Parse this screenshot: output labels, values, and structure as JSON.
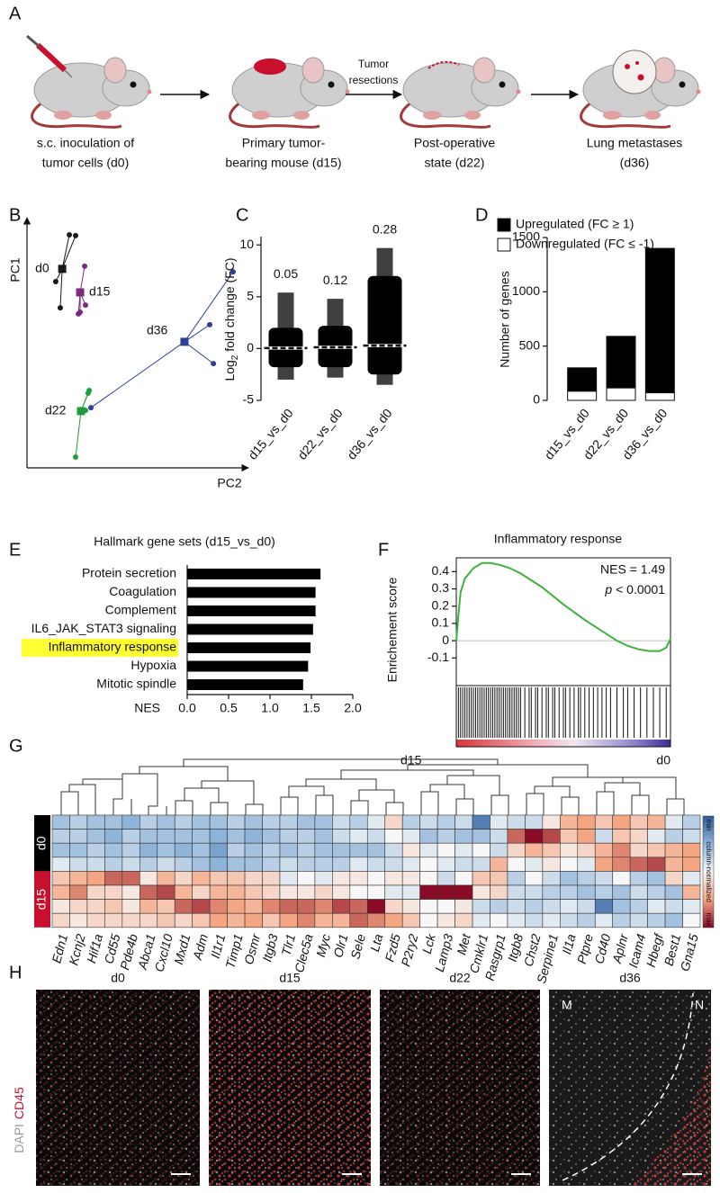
{
  "panel_labels": [
    "A",
    "B",
    "C",
    "D",
    "E",
    "F",
    "G",
    "H"
  ],
  "schematic": {
    "steps": [
      {
        "caption": [
          "s.c. inoculation of",
          "tumor cells (d0)"
        ]
      },
      {
        "caption": [
          "Primary tumor-",
          "bearing mouse (d15)"
        ]
      },
      {
        "caption": [
          "Post-operative",
          "state (d22)"
        ]
      },
      {
        "caption": [
          "Lung metastases",
          "(d36)"
        ]
      }
    ],
    "transition_label": [
      "Tumor",
      "resections"
    ]
  },
  "chart_data": [
    {
      "type": "pca",
      "x_label": "PC2",
      "y_label": "PC1",
      "xlim": [
        0,
        100
      ],
      "ylim": [
        0,
        100
      ],
      "series": [
        {
          "name": "d0",
          "color": "#1a1a1a",
          "centroid": [
            16.3,
            81.3
          ],
          "x": [
            19.6,
            22.5,
            13.3,
            15.4
          ],
          "y": [
            95.2,
            94.9,
            76.1,
            65.4
          ]
        },
        {
          "name": "d15",
          "color": "#7b2a7e",
          "centroid": [
            24.6,
            71.7
          ],
          "x": [
            26.7,
            27.1,
            24.6,
            23.8
          ],
          "y": [
            82.4,
            66.5,
            63.6,
            62.9
          ]
        },
        {
          "name": "d36",
          "color": "#2f3f99",
          "centroid": [
            72.9,
            51.5
          ],
          "x": [
            95.4,
            84.6,
            86.3,
            29.6
          ],
          "y": [
            80.1,
            58.5,
            42.6,
            24.6
          ]
        },
        {
          "name": "d22",
          "color": "#1e9e3a",
          "centroid": [
            25.0,
            23.2
          ],
          "x": [
            28.3,
            22.5,
            28.8,
            27.1
          ],
          "y": [
            30.5,
            4.4,
            31.6,
            23.5
          ]
        }
      ]
    },
    {
      "type": "strip",
      "y_label_parts": [
        "Log",
        "2",
        " fold change (FC)"
      ],
      "categories": [
        "d15_vs_d0",
        "d22_vs_d0",
        "d36_vs_d0"
      ],
      "values": [
        0.05,
        0.12,
        0.28
      ],
      "min": [
        -3,
        -2.8,
        -3.5
      ],
      "max": [
        5.4,
        4.8,
        9.7
      ],
      "dense_low": [
        -1.8,
        -1.8,
        -2.5
      ],
      "dense_high": [
        2,
        2.2,
        7
      ],
      "color": "#000000",
      "ylim": [
        -5,
        10.8
      ],
      "yticks": [
        10,
        5,
        0,
        -5
      ]
    },
    {
      "type": "stacked_bar",
      "y_label": "Number of genes",
      "categories": [
        "d15_vs_d0",
        "d22_vs_d0",
        "d36_vs_d0"
      ],
      "series": [
        {
          "name": "Upregulated (FC ≥ 1)",
          "color": "#000000",
          "values": [
            215,
            475,
            1330
          ]
        },
        {
          "name": "Downregulated (FC ≤ -1)",
          "color": "#ffffff",
          "values": [
            85,
            115,
            70
          ]
        }
      ],
      "ylim": [
        0,
        1500
      ],
      "yticks": [
        0,
        500,
        1000,
        1500
      ]
    },
    {
      "type": "hbar",
      "title": "Hallmark gene sets (d15_vs_d0)",
      "categories": [
        "Protein secretion",
        "Coagulation",
        "Complement",
        "IL6_JAK_STAT3 signaling",
        "Inflammatory response",
        "Hypoxia",
        "Mitotic spindle"
      ],
      "values": [
        1.61,
        1.55,
        1.55,
        1.52,
        1.49,
        1.46,
        1.4
      ],
      "color": "#000000",
      "highlight": 4,
      "highlight_color": "#ffff33",
      "x_label": "NES",
      "xlim": [
        0,
        2
      ],
      "xticks": [
        {
          "value": 0,
          "label": "0.0"
        },
        0.5,
        {
          "value": 1,
          "label": "1.0"
        },
        1.5,
        {
          "value": 2,
          "label": "2.0"
        }
      ]
    },
    {
      "type": "enrichment",
      "title": "Inflammatory response",
      "y_label": "Enrichement score",
      "x": [
        0,
        1,
        2,
        4,
        8,
        12,
        16,
        20,
        25,
        30,
        40,
        50,
        60,
        70,
        75,
        80,
        85,
        90,
        95,
        98,
        100
      ],
      "values": [
        0,
        0.15,
        0.28,
        0.36,
        0.42,
        0.45,
        0.45,
        0.44,
        0.42,
        0.39,
        0.31,
        0.21,
        0.12,
        0.04,
        0.0,
        -0.03,
        -0.05,
        -0.06,
        -0.06,
        -0.04,
        0.01
      ],
      "color": "#3cb33c",
      "xlim": [
        0,
        100
      ],
      "ylim": [
        -0.26,
        0.48
      ],
      "yticks": [
        0.4,
        0.3,
        0.2,
        0.1,
        0,
        -0.1
      ],
      "hits": [
        1,
        2,
        3,
        4,
        5,
        6,
        7,
        8,
        9,
        10,
        11,
        12,
        13,
        14,
        15,
        16,
        17,
        18,
        19,
        20,
        21,
        22,
        23,
        24,
        25,
        26,
        27,
        28,
        29,
        30,
        32,
        34,
        35,
        37,
        38,
        40,
        42,
        43,
        45,
        46,
        48,
        50,
        51,
        53,
        55,
        57,
        58,
        60,
        62,
        64,
        66,
        68,
        70,
        72,
        75,
        78,
        80,
        83,
        86,
        89,
        92,
        95,
        98
      ],
      "annotation": "NES = 1.49",
      "p_parts": [
        "p",
        " < 0.0001"
      ],
      "x_ends": [
        "d15",
        "d0"
      ]
    }
  ],
  "heatmap": {
    "columns": [
      "Edn1",
      "Kcnj2",
      "Hif1a",
      "Cd55",
      "Pde4b",
      "Abca1",
      "Cxcl10",
      "Mxd1",
      "Adm",
      "Il1r1",
      "Timp1",
      "Osmr",
      "Itgb3",
      "Tlr1",
      "Clec5a",
      "Myc",
      "Olr1",
      "Sele",
      "Lta",
      "Fzd5",
      "P2ry2",
      "Lck",
      "Lamp3",
      "Met",
      "Cmklr1",
      "Rasgrp1",
      "Itgb8",
      "Chst2",
      "Serpine1",
      "Il1a",
      "Ptpre",
      "Cd40",
      "Aplnr",
      "Icam4",
      "Hbegf",
      "Best1",
      "Gna15"
    ],
    "groups": [
      {
        "name": "d0",
        "color": "#000000",
        "values": [
          [
            0.3,
            0.35,
            0.3,
            0.3,
            0.25,
            0.35,
            0.3,
            0.35,
            0.3,
            0.3,
            0.35,
            0.3,
            0.35,
            0.35,
            0.3,
            0.3,
            0.4,
            0.35,
            0.45,
            0.6,
            0.35,
            0.4,
            0.35,
            0.4,
            0.1,
            0.45,
            0.4,
            0.4,
            0.55,
            0.7,
            0.75,
            0.65,
            0.75,
            0.65,
            0.7,
            0.45,
            0.35
          ],
          [
            0.35,
            0.35,
            0.3,
            0.25,
            0.35,
            0.3,
            0.3,
            0.3,
            0.3,
            0.25,
            0.3,
            0.25,
            0.3,
            0.35,
            0.35,
            0.3,
            0.4,
            0.45,
            0.4,
            0.5,
            0.45,
            0.3,
            0.35,
            0.3,
            0.3,
            0.4,
            0.85,
            1.0,
            0.9,
            0.65,
            0.75,
            0.4,
            0.65,
            0.6,
            0.45,
            0.35,
            0.4
          ],
          [
            0.3,
            0.3,
            0.35,
            0.3,
            0.35,
            0.25,
            0.3,
            0.25,
            0.3,
            0.2,
            0.35,
            0.3,
            0.35,
            0.3,
            0.35,
            0.3,
            0.3,
            0.3,
            0.3,
            0.4,
            0.55,
            0.45,
            0.5,
            0.45,
            0.5,
            0.4,
            0.6,
            0.7,
            0.65,
            0.55,
            0.6,
            0.7,
            0.8,
            0.6,
            0.65,
            0.7,
            0.75
          ],
          [
            0.45,
            0.4,
            0.4,
            0.35,
            0.4,
            0.35,
            0.4,
            0.35,
            0.3,
            0.25,
            0.3,
            0.3,
            0.35,
            0.4,
            0.35,
            0.35,
            0.35,
            0.45,
            0.4,
            0.4,
            0.45,
            0.5,
            0.45,
            0.4,
            0.4,
            0.7,
            0.5,
            0.45,
            0.55,
            0.5,
            0.45,
            0.75,
            0.8,
            0.85,
            0.9,
            0.7,
            0.75
          ]
        ]
      },
      {
        "name": "d15",
        "color": "#c8102e",
        "values": [
          [
            0.65,
            0.7,
            0.75,
            0.85,
            0.85,
            0.55,
            0.7,
            0.6,
            0.7,
            0.65,
            0.65,
            0.6,
            0.6,
            0.45,
            0.5,
            0.45,
            0.55,
            0.55,
            0.5,
            0.55,
            0.55,
            0.5,
            0.4,
            0.5,
            0.65,
            0.65,
            0.35,
            0.5,
            0.4,
            0.3,
            0.35,
            0.4,
            0.5,
            0.35,
            0.3,
            0.6,
            0.45
          ],
          [
            0.7,
            0.8,
            0.6,
            0.6,
            0.55,
            0.85,
            0.9,
            0.7,
            0.6,
            0.7,
            0.7,
            0.65,
            0.6,
            0.55,
            0.55,
            0.6,
            0.55,
            0.5,
            0.5,
            0.45,
            0.45,
            1.0,
            1.0,
            1.0,
            0.55,
            0.6,
            0.4,
            0.4,
            0.35,
            0.35,
            0.3,
            0.35,
            0.3,
            0.4,
            0.35,
            0.3,
            0.7
          ],
          [
            0.55,
            0.6,
            0.6,
            0.65,
            0.55,
            0.7,
            0.65,
            0.85,
            0.9,
            0.8,
            0.75,
            0.7,
            0.8,
            0.85,
            0.85,
            0.8,
            0.9,
            0.85,
            1.0,
            0.6,
            0.55,
            0.5,
            0.5,
            0.55,
            0.4,
            0.35,
            0.4,
            0.35,
            0.4,
            0.45,
            0.4,
            0.1,
            0.3,
            0.35,
            0.45,
            0.4,
            0.45
          ],
          [
            0.6,
            0.55,
            0.6,
            0.6,
            0.6,
            0.6,
            0.65,
            0.6,
            0.65,
            0.75,
            0.7,
            0.75,
            0.65,
            0.75,
            0.8,
            0.7,
            0.7,
            0.85,
            0.8,
            0.75,
            0.65,
            0.5,
            0.55,
            0.6,
            0.45,
            0.5,
            0.45,
            0.4,
            0.45,
            0.4,
            0.35,
            0.45,
            0.35,
            0.4,
            0.35,
            0.3,
            0.5
          ]
        ]
      }
    ],
    "colorbar": {
      "min": "min",
      "label": "column-normalized",
      "max": "max"
    }
  },
  "images": {
    "panels": [
      {
        "title": "d0"
      },
      {
        "title": "d15"
      },
      {
        "title": "d22"
      },
      {
        "title": "d36",
        "region_labels": [
          "M",
          "N"
        ]
      }
    ],
    "stain_labels": [
      {
        "text": "DAPI",
        "color": "#9a9a9a"
      },
      {
        "text": "CD45",
        "color": "#c8102e"
      }
    ]
  }
}
